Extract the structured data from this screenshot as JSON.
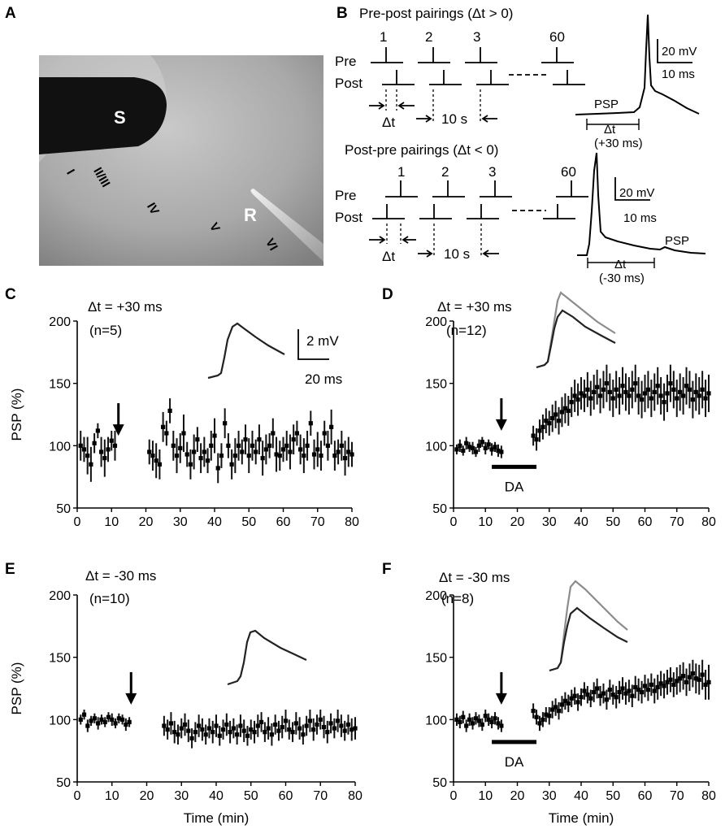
{
  "panel_letters": {
    "a": "A",
    "b": "B",
    "c": "C",
    "d": "D",
    "e": "E",
    "f": "F"
  },
  "photo": {
    "stim_label": "S",
    "rec_label": "R",
    "layers": [
      "I",
      "II/III",
      "IV",
      "V",
      "VI"
    ]
  },
  "protocol": {
    "prepost_title": "Pre-post pairings (Δt > 0)",
    "postpre_title": "Post-pre pairings (Δt < 0)",
    "pre_label": "Pre",
    "post_label": "Post",
    "pair_numbers": [
      "1",
      "2",
      "3",
      "60"
    ],
    "dt_label": "Δt",
    "interval_label": "10 s",
    "psp_label": "PSP",
    "dt_plus": "(+30 ms)",
    "dt_minus": "(-30 ms)",
    "scale_mv": "20 mV",
    "scale_ms": "10 ms"
  },
  "inset_scale": {
    "mv": "2 mV",
    "ms": "20 ms"
  },
  "common": {
    "ylabel": "PSP (%)",
    "xlabel": "Time (min)",
    "da_label": "DA"
  },
  "colors": {
    "trace": "#222222",
    "trace_light": "#8c8c8c"
  },
  "chart_data": [
    {
      "type": "scatter",
      "panel": "C",
      "annotation": "Δt = +30 ms",
      "n_label": "(n=5)",
      "ylabel": "PSP (%)",
      "xlabel": "",
      "xlim": [
        0,
        80
      ],
      "ylim": [
        50,
        200
      ],
      "xticks": [
        0,
        10,
        20,
        30,
        40,
        50,
        60,
        70,
        80
      ],
      "yticks": [
        50,
        100,
        150,
        200
      ],
      "arrow_x": 12,
      "da_bar": null,
      "x": [
        1,
        2,
        3,
        4,
        5,
        6,
        7,
        8,
        9,
        10,
        11,
        21,
        22,
        23,
        24,
        25,
        26,
        27,
        28,
        29,
        30,
        31,
        32,
        33,
        34,
        35,
        36,
        37,
        38,
        39,
        40,
        41,
        42,
        43,
        44,
        45,
        46,
        47,
        48,
        49,
        50,
        51,
        52,
        53,
        54,
        55,
        56,
        57,
        58,
        59,
        60,
        61,
        62,
        63,
        64,
        65,
        66,
        67,
        68,
        69,
        70,
        71,
        72,
        73,
        74,
        75,
        76,
        77,
        78,
        79,
        80
      ],
      "y": [
        100,
        97,
        92,
        85,
        102,
        112,
        95,
        90,
        97,
        104,
        100,
        95,
        92,
        88,
        85,
        115,
        110,
        128,
        100,
        92,
        98,
        110,
        93,
        85,
        95,
        105,
        90,
        95,
        88,
        100,
        108,
        82,
        92,
        118,
        100,
        85,
        92,
        100,
        95,
        105,
        92,
        100,
        95,
        105,
        90,
        97,
        100,
        110,
        93,
        92,
        97,
        100,
        95,
        105,
        110,
        97,
        92,
        100,
        118,
        93,
        97,
        92,
        110,
        100,
        115,
        92,
        95,
        100,
        90,
        95,
        93
      ],
      "err": [
        12,
        10,
        15,
        14,
        8,
        6,
        12,
        15,
        10,
        8,
        12,
        10,
        12,
        14,
        12,
        12,
        10,
        10,
        12,
        14,
        12,
        15,
        10,
        12,
        14,
        10,
        12,
        12,
        10,
        12,
        14,
        12,
        10,
        12,
        10,
        12,
        14,
        12,
        10,
        12,
        14,
        12,
        10,
        12,
        14,
        12,
        10,
        12,
        14,
        12,
        10,
        12,
        14,
        12,
        10,
        12,
        14,
        12,
        10,
        12,
        14,
        12,
        10,
        12,
        14,
        12,
        10,
        12,
        14,
        12,
        10
      ]
    },
    {
      "type": "scatter",
      "panel": "D",
      "annotation": "Δt = +30 ms",
      "n_label": "(n=12)",
      "ylabel": "",
      "xlabel": "",
      "xlim": [
        0,
        80
      ],
      "ylim": [
        50,
        200
      ],
      "xticks": [
        0,
        10,
        20,
        30,
        40,
        50,
        60,
        70,
        80
      ],
      "yticks": [
        50,
        100,
        150,
        200
      ],
      "arrow_x": 15,
      "da_bar": [
        12,
        26
      ],
      "x": [
        1,
        2,
        3,
        4,
        5,
        6,
        7,
        8,
        9,
        10,
        11,
        12,
        13,
        14,
        15,
        25,
        26,
        27,
        28,
        29,
        30,
        31,
        32,
        33,
        34,
        35,
        36,
        37,
        38,
        39,
        40,
        41,
        42,
        43,
        44,
        45,
        46,
        47,
        48,
        49,
        50,
        51,
        52,
        53,
        54,
        55,
        56,
        57,
        58,
        59,
        60,
        61,
        62,
        63,
        64,
        65,
        66,
        67,
        68,
        69,
        70,
        71,
        72,
        73,
        74,
        75,
        76,
        77,
        78,
        79,
        80
      ],
      "y": [
        97,
        100,
        96,
        102,
        99,
        98,
        95,
        100,
        103,
        98,
        101,
        97,
        99,
        96,
        95,
        108,
        105,
        112,
        115,
        120,
        118,
        122,
        125,
        120,
        127,
        130,
        128,
        135,
        140,
        137,
        142,
        140,
        145,
        138,
        143,
        147,
        140,
        145,
        150,
        143,
        138,
        145,
        140,
        148,
        143,
        140,
        145,
        150,
        140,
        137,
        142,
        145,
        138,
        143,
        148,
        140,
        135,
        142,
        150,
        145,
        138,
        143,
        140,
        148,
        145,
        137,
        143,
        140,
        145,
        138,
        142
      ],
      "err": [
        4,
        5,
        4,
        5,
        4,
        5,
        4,
        5,
        4,
        5,
        4,
        5,
        4,
        5,
        5,
        8,
        9,
        9,
        10,
        10,
        10,
        11,
        11,
        11,
        12,
        12,
        12,
        12,
        13,
        13,
        13,
        13,
        14,
        14,
        14,
        14,
        14,
        15,
        15,
        15,
        15,
        15,
        15,
        15,
        15,
        15,
        15,
        15,
        15,
        15,
        15,
        15,
        15,
        15,
        15,
        15,
        15,
        15,
        15,
        15,
        15,
        15,
        15,
        15,
        15,
        15,
        15,
        15,
        15,
        15,
        15
      ]
    },
    {
      "type": "scatter",
      "panel": "E",
      "annotation": "Δt = -30 ms",
      "n_label": "(n=10)",
      "ylabel": "PSP (%)",
      "xlabel": "Time (min)",
      "xlim": [
        0,
        80
      ],
      "ylim": [
        50,
        200
      ],
      "xticks": [
        0,
        10,
        20,
        30,
        40,
        50,
        60,
        70,
        80
      ],
      "yticks": [
        50,
        100,
        150,
        200
      ],
      "arrow_x": 15.5,
      "da_bar": null,
      "x": [
        1,
        2,
        3,
        4,
        5,
        6,
        7,
        8,
        9,
        10,
        11,
        12,
        13,
        14,
        15,
        25,
        26,
        27,
        28,
        29,
        30,
        31,
        32,
        33,
        34,
        35,
        36,
        37,
        38,
        39,
        40,
        41,
        42,
        43,
        44,
        45,
        46,
        47,
        48,
        49,
        50,
        51,
        52,
        53,
        54,
        55,
        56,
        57,
        58,
        59,
        60,
        61,
        62,
        63,
        64,
        65,
        66,
        67,
        68,
        69,
        70,
        71,
        72,
        73,
        74,
        75,
        76,
        77,
        78,
        79,
        80
      ],
      "y": [
        100,
        104,
        95,
        99,
        101,
        97,
        100,
        98,
        102,
        100,
        97,
        101,
        100,
        96,
        98,
        95,
        92,
        97,
        90,
        88,
        93,
        96,
        91,
        85,
        90,
        95,
        92,
        88,
        93,
        90,
        95,
        87,
        92,
        96,
        90,
        93,
        88,
        95,
        91,
        87,
        92,
        90,
        95,
        98,
        90,
        93,
        88,
        96,
        91,
        94,
        99,
        92,
        90,
        97,
        93,
        88,
        95,
        99,
        92,
        96,
        100,
        94,
        90,
        97,
        93,
        99,
        95,
        91,
        96,
        92,
        93
      ],
      "err": [
        4,
        4,
        5,
        4,
        4,
        5,
        4,
        4,
        4,
        5,
        4,
        4,
        4,
        5,
        4,
        8,
        8,
        9,
        9,
        8,
        8,
        9,
        9,
        8,
        8,
        9,
        9,
        8,
        8,
        9,
        9,
        8,
        8,
        9,
        9,
        8,
        8,
        9,
        9,
        8,
        8,
        9,
        9,
        8,
        8,
        9,
        9,
        8,
        8,
        9,
        9,
        8,
        8,
        9,
        9,
        8,
        8,
        9,
        9,
        8,
        8,
        9,
        9,
        8,
        8,
        9,
        9,
        8,
        8,
        9,
        9
      ]
    },
    {
      "type": "scatter",
      "panel": "F",
      "annotation": "Δt = -30 ms",
      "n_label": "(n=8)",
      "ylabel": "",
      "xlabel": "Time (min)",
      "xlim": [
        0,
        80
      ],
      "ylim": [
        50,
        200
      ],
      "xticks": [
        0,
        10,
        20,
        30,
        40,
        50,
        60,
        70,
        80
      ],
      "yticks": [
        50,
        100,
        150,
        200
      ],
      "arrow_x": 15,
      "da_bar": [
        12,
        26
      ],
      "x": [
        1,
        2,
        3,
        4,
        5,
        6,
        7,
        8,
        9,
        10,
        11,
        12,
        13,
        14,
        15,
        25,
        26,
        27,
        28,
        29,
        30,
        31,
        32,
        33,
        34,
        35,
        36,
        37,
        38,
        39,
        40,
        41,
        42,
        43,
        44,
        45,
        46,
        47,
        48,
        49,
        50,
        51,
        52,
        53,
        54,
        55,
        56,
        57,
        58,
        59,
        60,
        61,
        62,
        63,
        64,
        65,
        66,
        67,
        68,
        69,
        70,
        71,
        72,
        73,
        74,
        75,
        76,
        77,
        78,
        79,
        80
      ],
      "y": [
        100,
        98,
        102,
        95,
        100,
        97,
        101,
        99,
        96,
        103,
        100,
        98,
        101,
        97,
        95,
        107,
        102,
        97,
        100,
        104,
        103,
        108,
        110,
        107,
        112,
        115,
        113,
        117,
        119,
        114,
        118,
        123,
        120,
        117,
        122,
        125,
        119,
        121,
        116,
        124,
        120,
        118,
        122,
        125,
        121,
        123,
        119,
        126,
        124,
        122,
        127,
        124,
        128,
        123,
        126,
        129,
        127,
        130,
        132,
        128,
        131,
        133,
        135,
        130,
        134,
        137,
        133,
        132,
        136,
        128,
        130
      ],
      "err": [
        5,
        5,
        5,
        5,
        5,
        5,
        5,
        5,
        5,
        5,
        5,
        5,
        5,
        5,
        5,
        6,
        6,
        6,
        6,
        6,
        7,
        7,
        7,
        7,
        7,
        7,
        7,
        7,
        7,
        7,
        7,
        7,
        7,
        7,
        8,
        8,
        8,
        8,
        8,
        8,
        8,
        9,
        9,
        9,
        9,
        9,
        9,
        9,
        9,
        9,
        9,
        9,
        9,
        10,
        10,
        10,
        10,
        10,
        10,
        10,
        11,
        11,
        11,
        11,
        11,
        11,
        12,
        12,
        12,
        12,
        14
      ]
    }
  ]
}
